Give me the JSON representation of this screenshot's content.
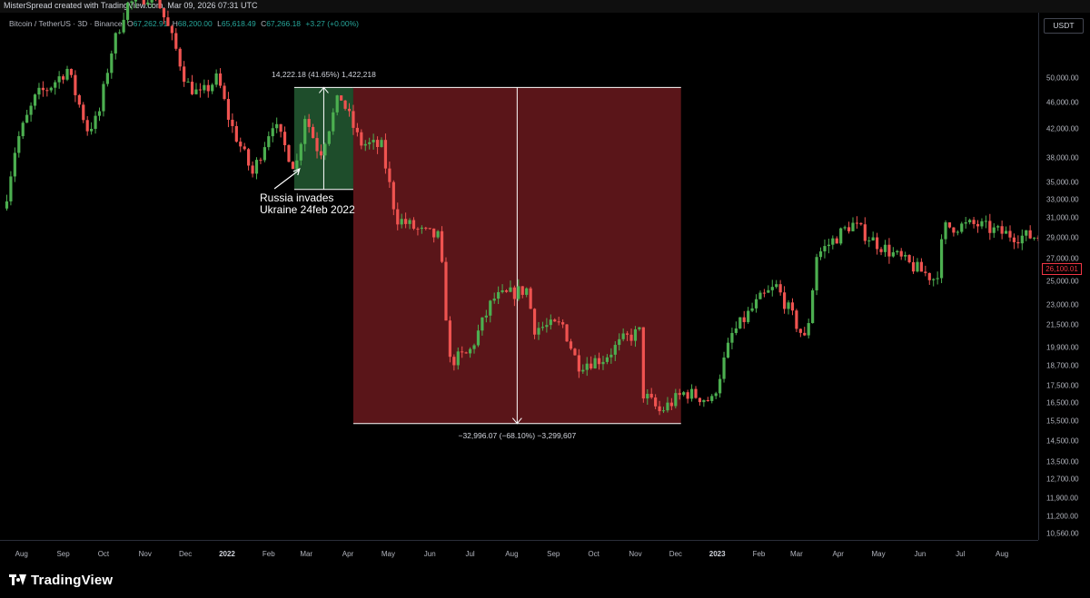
{
  "topbar": {
    "credit": "MisterSpread created with TradingView.com, Mar 09, 2026 07:31 UTC"
  },
  "legend": {
    "symbol": "Bitcoin / TetherUS · 3D · Binance",
    "open_label": "O",
    "open": "67,262.91",
    "high_label": "H",
    "high": "68,200.00",
    "low_label": "L",
    "low": "65,618.49",
    "close_label": "C",
    "close": "67,266.18",
    "change": "+3.27 (+0.00%)"
  },
  "price_scale": {
    "currency": "USDT",
    "last_price": "26,100.01",
    "ticks": [
      "50,000.00",
      "46,000.00",
      "42,000.00",
      "38,000.00",
      "35,000.00",
      "33,000.00",
      "31,000.00",
      "29,000.00",
      "27,000.00",
      "25,000.00",
      "23,000.00",
      "21,500.00",
      "19,900.00",
      "18,700.00",
      "17,500.00",
      "16,500.00",
      "15,500.00",
      "14,500.00",
      "13,500.00",
      "12,700.00",
      "11,900.00",
      "11,200.00",
      "10,560.00"
    ]
  },
  "time_scale": {
    "ticks": [
      {
        "label": "Aug",
        "bold": false
      },
      {
        "label": "Sep",
        "bold": false
      },
      {
        "label": "Oct",
        "bold": false
      },
      {
        "label": "Nov",
        "bold": false
      },
      {
        "label": "Dec",
        "bold": false
      },
      {
        "label": "2022",
        "bold": true
      },
      {
        "label": "Feb",
        "bold": false
      },
      {
        "label": "Mar",
        "bold": false
      },
      {
        "label": "Apr",
        "bold": false
      },
      {
        "label": "May",
        "bold": false
      },
      {
        "label": "Jun",
        "bold": false
      },
      {
        "label": "Jul",
        "bold": false
      },
      {
        "label": "Aug",
        "bold": false
      },
      {
        "label": "Sep",
        "bold": false
      },
      {
        "label": "Oct",
        "bold": false
      },
      {
        "label": "Nov",
        "bold": false
      },
      {
        "label": "Dec",
        "bold": false
      },
      {
        "label": "2023",
        "bold": true
      },
      {
        "label": "Feb",
        "bold": false
      },
      {
        "label": "Mar",
        "bold": false
      },
      {
        "label": "Apr",
        "bold": false
      },
      {
        "label": "May",
        "bold": false
      },
      {
        "label": "Jun",
        "bold": false
      },
      {
        "label": "Jul",
        "bold": false
      },
      {
        "label": "Aug",
        "bold": false
      }
    ]
  },
  "measure_up": {
    "label": "14,222.18 (41.65%) 1,422,218",
    "from_price": 34150,
    "to_price": 48360,
    "color": "#1e4d2b"
  },
  "measure_down": {
    "label": "−32,996.07 (−68.10%) −3,299,607",
    "from_price": 48360,
    "to_price": 15370,
    "color": "#5a1519"
  },
  "annotation": {
    "text": "Russia invades\nUkraine 24feb 2022"
  },
  "colors": {
    "up": "#26a69a",
    "up_body": "#4caf50",
    "down": "#ef5350",
    "bg": "#000000"
  },
  "footer": {
    "brand": "TradingView"
  },
  "chart_data": {
    "type": "candlestick",
    "symbol": "Bitcoin / TetherUS",
    "interval": "3D",
    "exchange": "Binance",
    "y_scale": "log",
    "ylim": [
      10300,
      56000
    ],
    "x_range": [
      "2021-07-20",
      "2023-08-30"
    ],
    "path_close_points": [
      [
        "2021-07-21",
        32000
      ],
      [
        "2021-07-30",
        40000
      ],
      [
        "2021-08-14",
        47000
      ],
      [
        "2021-08-24",
        48500
      ],
      [
        "2021-09-06",
        51500
      ],
      [
        "2021-09-21",
        42000
      ],
      [
        "2021-09-29",
        43500
      ],
      [
        "2021-10-08",
        54000
      ],
      [
        "2021-10-20",
        64000
      ],
      [
        "2021-11-10",
        67000
      ],
      [
        "2021-11-26",
        55000
      ],
      [
        "2021-12-04",
        49000
      ],
      [
        "2021-12-14",
        47000
      ],
      [
        "2021-12-27",
        50000
      ],
      [
        "2022-01-05",
        43000
      ],
      [
        "2022-01-22",
        36000
      ],
      [
        "2022-02-06",
        43000
      ],
      [
        "2022-02-22",
        37000
      ],
      [
        "2022-02-24",
        37500
      ],
      [
        "2022-03-02",
        44000
      ],
      [
        "2022-03-13",
        38500
      ],
      [
        "2022-03-28",
        47200
      ],
      [
        "2022-04-12",
        40000
      ],
      [
        "2022-04-28",
        39500
      ],
      [
        "2022-05-09",
        31000
      ],
      [
        "2022-05-28",
        29500
      ],
      [
        "2022-06-10",
        29000
      ],
      [
        "2022-06-18",
        19000
      ],
      [
        "2022-07-02",
        19500
      ],
      [
        "2022-07-20",
        23500
      ],
      [
        "2022-08-14",
        24300
      ],
      [
        "2022-08-20",
        21300
      ],
      [
        "2022-09-10",
        21500
      ],
      [
        "2022-09-21",
        18800
      ],
      [
        "2022-10-10",
        19200
      ],
      [
        "2022-10-26",
        20500
      ],
      [
        "2022-11-06",
        21000
      ],
      [
        "2022-11-09",
        17000
      ],
      [
        "2022-11-21",
        16000
      ],
      [
        "2022-12-10",
        17100
      ],
      [
        "2022-12-30",
        16600
      ],
      [
        "2023-01-14",
        20800
      ],
      [
        "2023-02-03",
        23400
      ],
      [
        "2023-02-16",
        24500
      ],
      [
        "2023-03-10",
        20300
      ],
      [
        "2023-03-18",
        27300
      ],
      [
        "2023-04-13",
        30400
      ],
      [
        "2023-05-01",
        28500
      ],
      [
        "2023-05-25",
        26500
      ],
      [
        "2023-06-15",
        25100
      ],
      [
        "2023-06-21",
        30000
      ],
      [
        "2023-07-15",
        30300
      ],
      [
        "2023-08-01",
        29500
      ],
      [
        "2023-08-16",
        29100
      ]
    ]
  }
}
